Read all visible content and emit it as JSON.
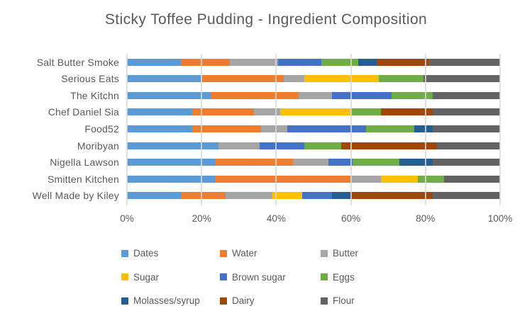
{
  "title": "Sticky Toffee Pudding - Ingredient Composition",
  "colors": {
    "text": "#595959",
    "gridline": "#D9D9D9",
    "background": "#FFFFFF"
  },
  "chart_data": {
    "type": "bar",
    "orientation": "horizontal",
    "stacked": true,
    "stacked_to_100_percent": true,
    "title": "Sticky Toffee Pudding - Ingredient Composition",
    "xlabel": "",
    "ylabel": "",
    "xlim": [
      0,
      100
    ],
    "grid": true,
    "legend_position": "bottom",
    "x_ticks": [
      "0%",
      "20%",
      "40%",
      "60%",
      "80%",
      "100%"
    ],
    "x_tick_values": [
      0,
      20,
      40,
      60,
      80,
      100
    ],
    "categories": [
      "Salt Butter Smoke",
      "Serious Eats",
      "The Kitchn",
      "Chef Daniel Sia",
      "Food52",
      "Moribyan",
      "Nigella Lawson",
      "Smitten Kitchen",
      "Well Made by Kiley"
    ],
    "series": [
      {
        "name": "Dates",
        "color": "#5B9BD5",
        "values": [
          14.5,
          20,
          22.5,
          17.5,
          17.5,
          24.5,
          23.5,
          23.5,
          14.5
        ]
      },
      {
        "name": "Water",
        "color": "#ED7D31",
        "values": [
          13,
          22,
          23.5,
          16.5,
          18.5,
          0,
          21,
          36.5,
          12
        ]
      },
      {
        "name": "Butter",
        "color": "#A5A5A5",
        "values": [
          13,
          5.5,
          9,
          7,
          7,
          11,
          9.5,
          8,
          12.5
        ]
      },
      {
        "name": "Sugar",
        "color": "#FFC000",
        "values": [
          0,
          20,
          0,
          19,
          0,
          0,
          0,
          10,
          8
        ]
      },
      {
        "name": "Brown sugar",
        "color": "#4472C4",
        "values": [
          11.5,
          0,
          16,
          0,
          21,
          12,
          6.5,
          0,
          8
        ]
      },
      {
        "name": "Eggs",
        "color": "#70AD47",
        "values": [
          10,
          12,
          11,
          8,
          13,
          10,
          12.5,
          7,
          0
        ]
      },
      {
        "name": "Molasses/syrup",
        "color": "#255E91",
        "values": [
          5,
          0,
          0,
          0,
          5,
          0,
          9,
          0,
          5
        ]
      },
      {
        "name": "Dairy",
        "color": "#9E480E",
        "values": [
          14,
          0,
          0,
          14,
          0,
          25.5,
          0,
          0,
          22
        ]
      },
      {
        "name": "Flour",
        "color": "#636363",
        "values": [
          19,
          20.5,
          18,
          18,
          18,
          17,
          18,
          15,
          18
        ]
      }
    ],
    "legend_layout": {
      "rows": [
        [
          "Dates",
          "Water",
          "Butter"
        ],
        [
          "Sugar",
          "Brown sugar",
          "Eggs"
        ],
        [
          "Molasses/syrup",
          "Dairy",
          "Flour"
        ]
      ]
    }
  }
}
